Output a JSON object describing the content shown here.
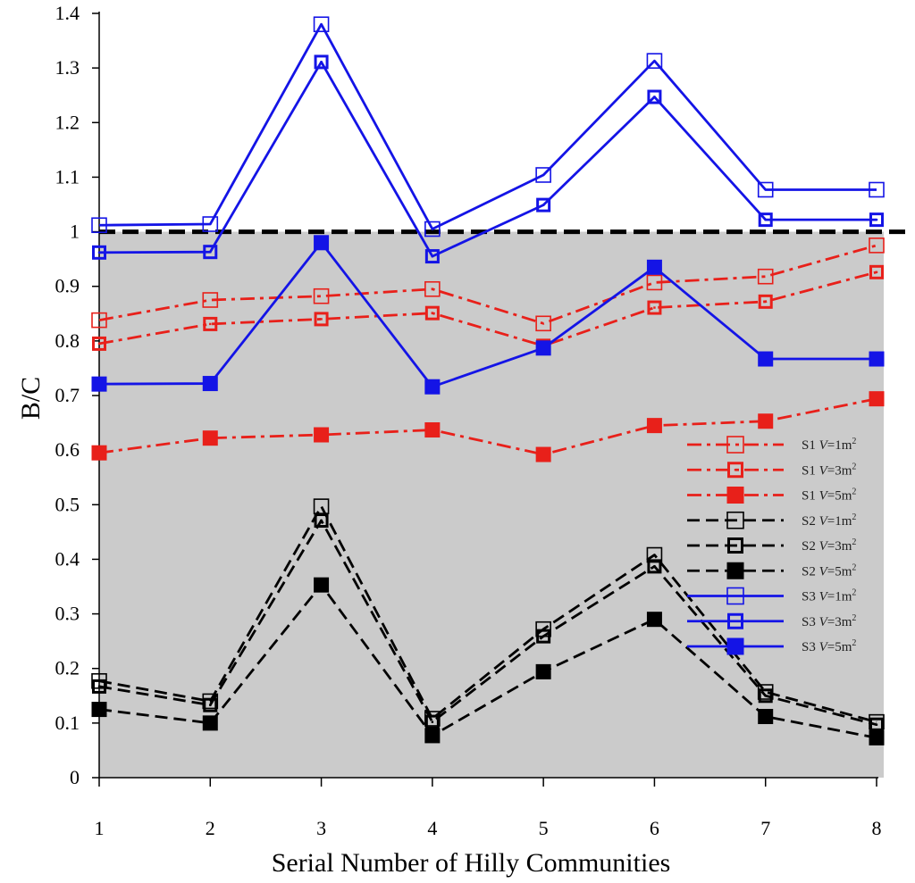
{
  "chart_data": {
    "type": "line",
    "title": "",
    "xlabel": "Serial Number of Hilly Communities",
    "ylabel": "B/C",
    "x": [
      1,
      2,
      3,
      4,
      5,
      6,
      7,
      8
    ],
    "xlim": [
      1,
      8
    ],
    "ylim": [
      0,
      1.4
    ],
    "yticks": [
      "0",
      "0.1",
      "0.2",
      "0.3",
      "0.4",
      "0.5",
      "0.6",
      "0.7",
      "0.8",
      "0.9",
      "1",
      "1.1",
      "1.2",
      "1.3",
      "1.4"
    ],
    "xticks": [
      "1",
      "2",
      "3",
      "4",
      "5",
      "6",
      "7",
      "8"
    ],
    "threshold": 1.0,
    "shaded_region": [
      0,
      1.0
    ],
    "legend_position": "right-middle",
    "series": [
      {
        "name": "S1",
        "volume": "V=1m²",
        "legend_s": "S1 ",
        "legend_v": "V",
        "legend_eq": "=1m",
        "legend_sup": "2",
        "color": "#e8201a",
        "line": "dashdot",
        "marker": "open",
        "values": [
          0.838,
          0.875,
          0.882,
          0.895,
          0.832,
          0.907,
          0.918,
          0.975
        ]
      },
      {
        "name": "S1",
        "volume": "V=3m²",
        "legend_s": "S1 ",
        "legend_v": "V",
        "legend_eq": "=3m",
        "legend_sup": "2",
        "color": "#e8201a",
        "line": "dashdot",
        "marker": "dot",
        "values": [
          0.795,
          0.831,
          0.84,
          0.851,
          0.791,
          0.861,
          0.872,
          0.926
        ]
      },
      {
        "name": "S1",
        "volume": "V=5m²",
        "legend_s": "S1 ",
        "legend_v": "V",
        "legend_eq": "=5m",
        "legend_sup": "2",
        "color": "#e8201a",
        "line": "dashdot",
        "marker": "filled",
        "values": [
          0.595,
          0.622,
          0.628,
          0.637,
          0.592,
          0.645,
          0.653,
          0.694
        ]
      },
      {
        "name": "S2",
        "volume": "V=1m²",
        "legend_s": "S2 ",
        "legend_v": "V",
        "legend_eq": "=1m",
        "legend_sup": "2",
        "color": "#000000",
        "line": "dash",
        "marker": "open",
        "values": [
          0.177,
          0.14,
          0.497,
          0.108,
          0.272,
          0.408,
          0.157,
          0.102
        ]
      },
      {
        "name": "S2",
        "volume": "V=3m²",
        "legend_s": "S2 ",
        "legend_v": "V",
        "legend_eq": "=3m",
        "legend_sup": "2",
        "color": "#000000",
        "line": "dash",
        "marker": "dot",
        "values": [
          0.167,
          0.133,
          0.471,
          0.102,
          0.259,
          0.387,
          0.15,
          0.097
        ]
      },
      {
        "name": "S2",
        "volume": "V=5m²",
        "legend_s": "S2 ",
        "legend_v": "V",
        "legend_eq": "=5m",
        "legend_sup": "2",
        "color": "#000000",
        "line": "dash",
        "marker": "filled",
        "values": [
          0.125,
          0.1,
          0.353,
          0.077,
          0.194,
          0.29,
          0.112,
          0.073
        ]
      },
      {
        "name": "S3",
        "volume": "V=1m²",
        "legend_s": "S3 ",
        "legend_v": "V",
        "legend_eq": "=1m",
        "legend_sup": "2",
        "color": "#1414e6",
        "line": "solid",
        "marker": "open",
        "values": [
          1.012,
          1.014,
          1.38,
          1.005,
          1.104,
          1.313,
          1.077,
          1.077
        ]
      },
      {
        "name": "S3",
        "volume": "V=3m²",
        "legend_s": "S3 ",
        "legend_v": "V",
        "legend_eq": "=3m",
        "legend_sup": "2",
        "color": "#1414e6",
        "line": "solid",
        "marker": "dot",
        "values": [
          0.962,
          0.963,
          1.311,
          0.955,
          1.049,
          1.247,
          1.022,
          1.022
        ]
      },
      {
        "name": "S3",
        "volume": "V=5m²",
        "legend_s": "S3 ",
        "legend_v": "V",
        "legend_eq": "=5m",
        "legend_sup": "2",
        "color": "#1414e6",
        "line": "solid",
        "marker": "filled",
        "values": [
          0.721,
          0.722,
          0.98,
          0.716,
          0.787,
          0.935,
          0.767,
          0.767
        ]
      }
    ]
  }
}
